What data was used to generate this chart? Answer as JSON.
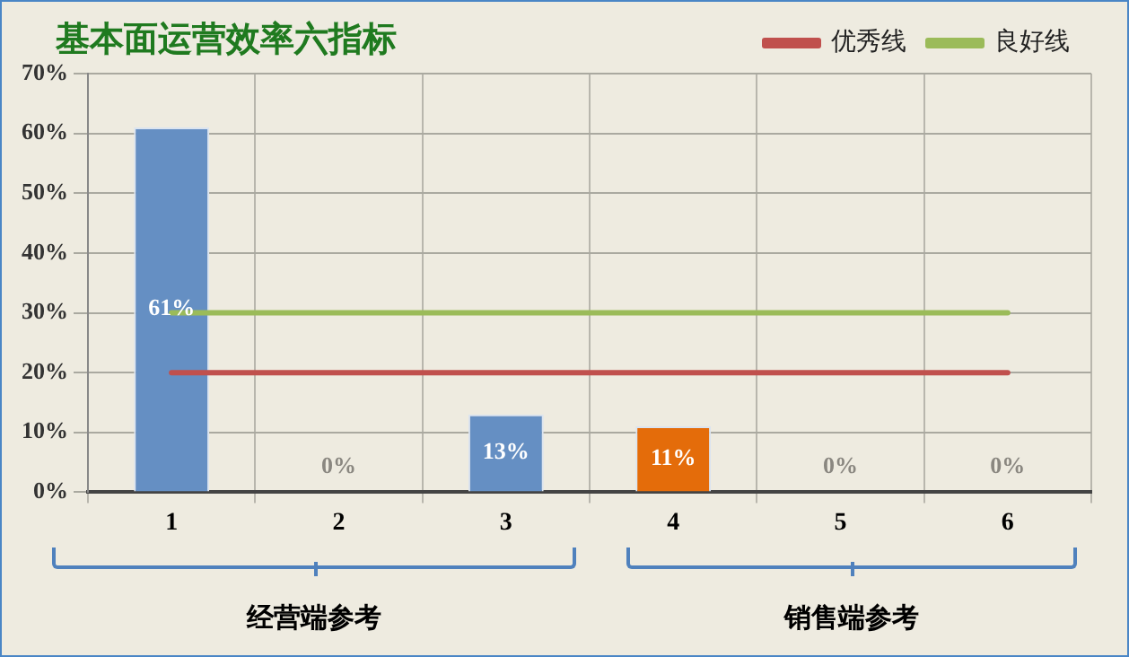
{
  "chart_data": {
    "type": "bar",
    "title": "基本面运营效率六指标",
    "categories": [
      "1",
      "2",
      "3",
      "4",
      "5",
      "6"
    ],
    "series": [
      {
        "colors": [
          "#658fc3",
          "#658fc3",
          "#658fc3",
          "#e46c0a",
          "#658fc3",
          "#658fc3"
        ],
        "values": [
          61,
          0,
          13,
          11,
          0,
          0
        ],
        "value_labels": [
          "61%",
          "0%",
          "13%",
          "11%",
          "0%",
          "0%"
        ]
      },
      {
        "type": "line",
        "name": "优秀线",
        "color": "#c0504d",
        "values": [
          20,
          20,
          20,
          20,
          20,
          20
        ]
      },
      {
        "type": "line",
        "name": "良好线",
        "color": "#9bbb59",
        "values": [
          30,
          30,
          30,
          30,
          30,
          30
        ]
      }
    ],
    "ylim": [
      0,
      70
    ],
    "yticks": [
      {
        "value": 0,
        "label": "0%"
      },
      {
        "value": 10,
        "label": "10%"
      },
      {
        "value": 20,
        "label": "20%"
      },
      {
        "value": 30,
        "label": "30%"
      },
      {
        "value": 40,
        "label": "40%"
      },
      {
        "value": 50,
        "label": "50%"
      },
      {
        "value": 60,
        "label": "60%"
      },
      {
        "value": 70,
        "label": "70%"
      }
    ],
    "grid": true,
    "legend": "top right",
    "marker": "none",
    "annotations": [
      "经营端参考",
      "销售端参考"
    ]
  }
}
